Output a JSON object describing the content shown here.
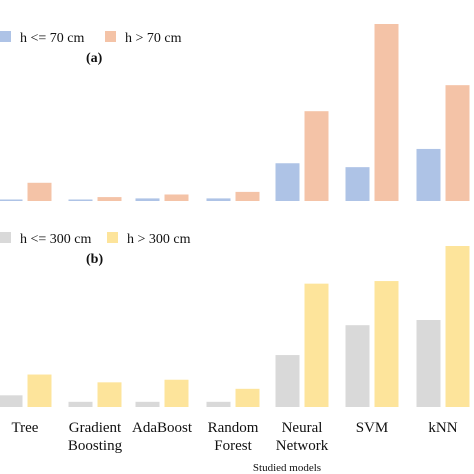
{
  "chart_data": [
    {
      "type": "bar",
      "panel_label": "(a)",
      "categories": [
        "Tree",
        "Gradient Boosting",
        "AdaBoost",
        "Random Forest",
        "Neural Network",
        "SVM",
        "kNN"
      ],
      "series": [
        {
          "name": "h <= 70 cm",
          "color": "#aec3e6",
          "values": [
            1,
            1,
            2,
            2,
            29,
            26,
            40
          ]
        },
        {
          "name": "h > 70 cm",
          "color": "#f4c3a7",
          "values": [
            14,
            3,
            5,
            7,
            69,
            136,
            89
          ]
        }
      ],
      "ylim": [
        0,
        136
      ],
      "legend": "top-left",
      "grid": false
    },
    {
      "type": "bar",
      "panel_label": "(b)",
      "categories": [
        "Tree",
        "Gradient Boosting",
        "AdaBoost",
        "Random Forest",
        "Neural Network",
        "SVM",
        "kNN"
      ],
      "series": [
        {
          "name": "h <= 300 cm",
          "color": "#d9d9d9",
          "values": [
            9,
            4,
            4,
            4,
            40,
            63,
            67
          ]
        },
        {
          "name": "h > 300 cm",
          "color": "#fde49b",
          "values": [
            25,
            19,
            21,
            14,
            95,
            97,
            124
          ]
        }
      ],
      "ylim": [
        0,
        124
      ],
      "legend": "top-left",
      "grid": false
    }
  ],
  "xlabel": "Studied models",
  "category_labels": [
    {
      "line1": "Tree",
      "line2": ""
    },
    {
      "line1": "Gradient",
      "line2": "Boosting"
    },
    {
      "line1": "AdaBoost",
      "line2": ""
    },
    {
      "line1": "Random",
      "line2": "Forest"
    },
    {
      "line1": "Neural",
      "line2": "Network"
    },
    {
      "line1": "SVM",
      "line2": ""
    },
    {
      "line1": "kNN",
      "line2": ""
    }
  ]
}
